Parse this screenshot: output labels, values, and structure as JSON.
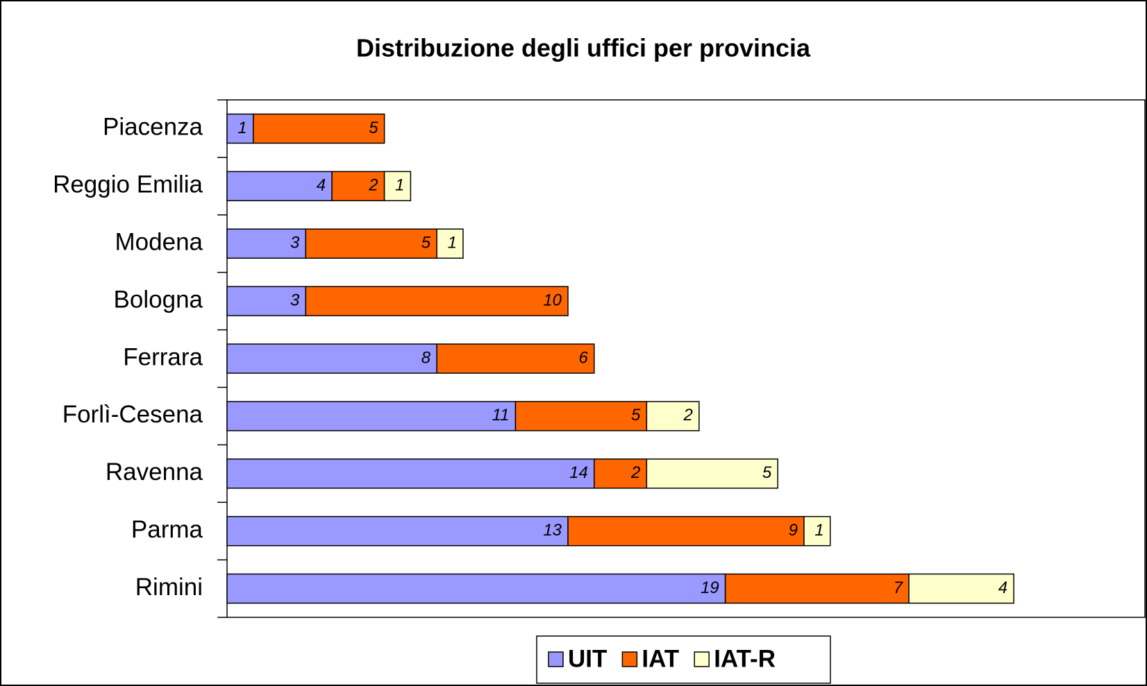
{
  "chart_data": {
    "type": "stacked-bar-horizontal",
    "title": "Distribuzione degli uffici per provincia",
    "categories": [
      "Piacenza",
      "Reggio Emilia",
      "Modena",
      "Bologna",
      "Ferrara",
      "Forlì-Cesena",
      "Ravenna",
      "Parma",
      "Rimini"
    ],
    "series": [
      {
        "name": "UIT",
        "color": "#9999ff",
        "values": [
          1,
          4,
          3,
          3,
          8,
          11,
          14,
          13,
          19
        ]
      },
      {
        "name": "IAT",
        "color": "#ff6600",
        "values": [
          5,
          2,
          5,
          10,
          6,
          5,
          2,
          9,
          7
        ]
      },
      {
        "name": "IAT-R",
        "color": "#ffffcc",
        "values": [
          null,
          1,
          1,
          null,
          null,
          2,
          5,
          1,
          4
        ]
      }
    ],
    "xlim": [
      0,
      35
    ],
    "legend": "bottom"
  }
}
